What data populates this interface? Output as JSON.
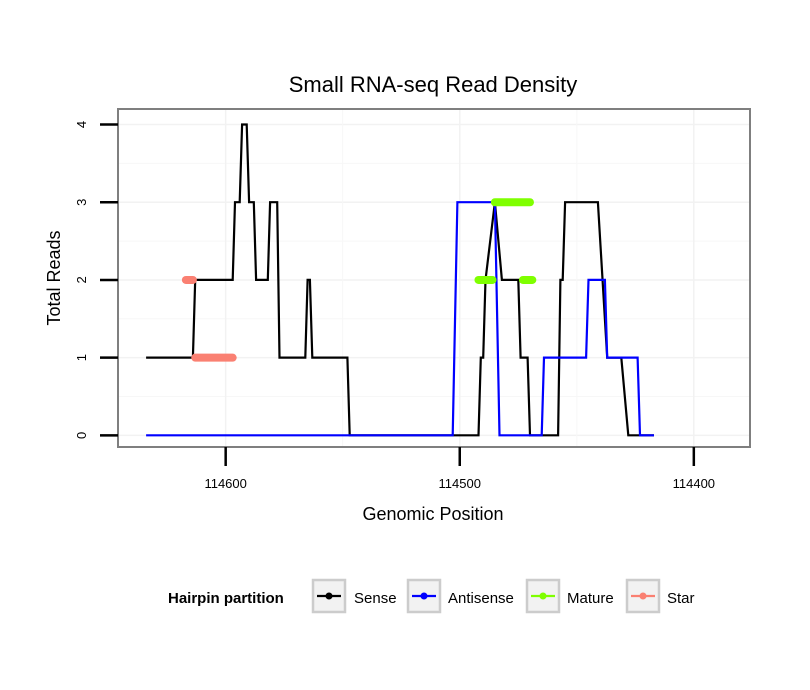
{
  "chart_data": {
    "type": "line",
    "title": "Small RNA-seq Read Density",
    "xlabel": "Genomic Position",
    "ylabel": "Total Reads",
    "xlim": [
      114646,
      114376
    ],
    "x_reversed": true,
    "ylim": [
      -0.15,
      4.2
    ],
    "xticks": [
      114600,
      114500,
      114400
    ],
    "xtick_labels": [
      "114600",
      "114500",
      "114400"
    ],
    "yticks": [
      0,
      1,
      2,
      3,
      4
    ],
    "ytick_labels": [
      "0",
      "1",
      "2",
      "3",
      "4"
    ],
    "grid": true,
    "legend": {
      "title": "Hairpin partition",
      "position": "bottom",
      "entries": [
        {
          "name": "Sense",
          "color": "#000000"
        },
        {
          "name": "Antisense",
          "color": "#0000ff"
        },
        {
          "name": "Mature",
          "color": "#7fff00"
        },
        {
          "name": "Star",
          "color": "#fa8072"
        }
      ]
    },
    "series": [
      {
        "name": "Sense",
        "color": "#000000",
        "style": "line",
        "points": [
          [
            114634,
            1
          ],
          [
            114614,
            1
          ],
          [
            114613,
            2
          ],
          [
            114597,
            2
          ],
          [
            114596,
            3
          ],
          [
            114594,
            3
          ],
          [
            114593,
            4
          ],
          [
            114591,
            4
          ],
          [
            114590,
            3
          ],
          [
            114588,
            3
          ],
          [
            114587,
            2
          ],
          [
            114582,
            2
          ],
          [
            114581,
            3
          ],
          [
            114578,
            3
          ],
          [
            114577,
            1
          ],
          [
            114566,
            1
          ],
          [
            114565,
            2
          ],
          [
            114564,
            2
          ],
          [
            114563,
            1
          ],
          [
            114548,
            1
          ],
          [
            114547,
            0
          ],
          [
            114492,
            0
          ],
          [
            114491,
            1
          ],
          [
            114490,
            1
          ],
          [
            114489,
            2
          ],
          [
            114485,
            3
          ],
          [
            114482,
            2
          ],
          [
            114475,
            2
          ],
          [
            114474,
            1
          ],
          [
            114471,
            1
          ],
          [
            114470,
            0
          ],
          [
            114458,
            0
          ],
          [
            114457,
            2
          ],
          [
            114456,
            2
          ],
          [
            114455,
            3
          ],
          [
            114441,
            3
          ],
          [
            114437,
            1
          ],
          [
            114431,
            1
          ],
          [
            114428,
            0
          ],
          [
            114417,
            0
          ]
        ]
      },
      {
        "name": "Antisense",
        "color": "#0000ff",
        "style": "line",
        "points": [
          [
            114634,
            0
          ],
          [
            114503,
            0
          ],
          [
            114501,
            3
          ],
          [
            114485,
            3
          ],
          [
            114483,
            0
          ],
          [
            114465,
            0
          ],
          [
            114464,
            1
          ],
          [
            114454,
            1
          ],
          [
            114453,
            1
          ],
          [
            114446,
            1
          ],
          [
            114445,
            2
          ],
          [
            114438,
            2
          ],
          [
            114437,
            1
          ],
          [
            114424,
            1
          ],
          [
            114423,
            0
          ],
          [
            114417,
            0
          ]
        ]
      },
      {
        "name": "Mature",
        "color": "#7fff00",
        "style": "thick-segment",
        "segments": [
          {
            "x": [
              114492,
              114486
            ],
            "y": 2
          },
          {
            "x": [
              114485,
              114470
            ],
            "y": 3
          },
          {
            "x": [
              114473,
              114469
            ],
            "y": 2
          }
        ]
      },
      {
        "name": "Star",
        "color": "#fa8072",
        "style": "thick-segment",
        "segments": [
          {
            "x": [
              114617,
              114614
            ],
            "y": 2
          },
          {
            "x": [
              114613,
              114597
            ],
            "y": 1
          }
        ]
      }
    ]
  }
}
